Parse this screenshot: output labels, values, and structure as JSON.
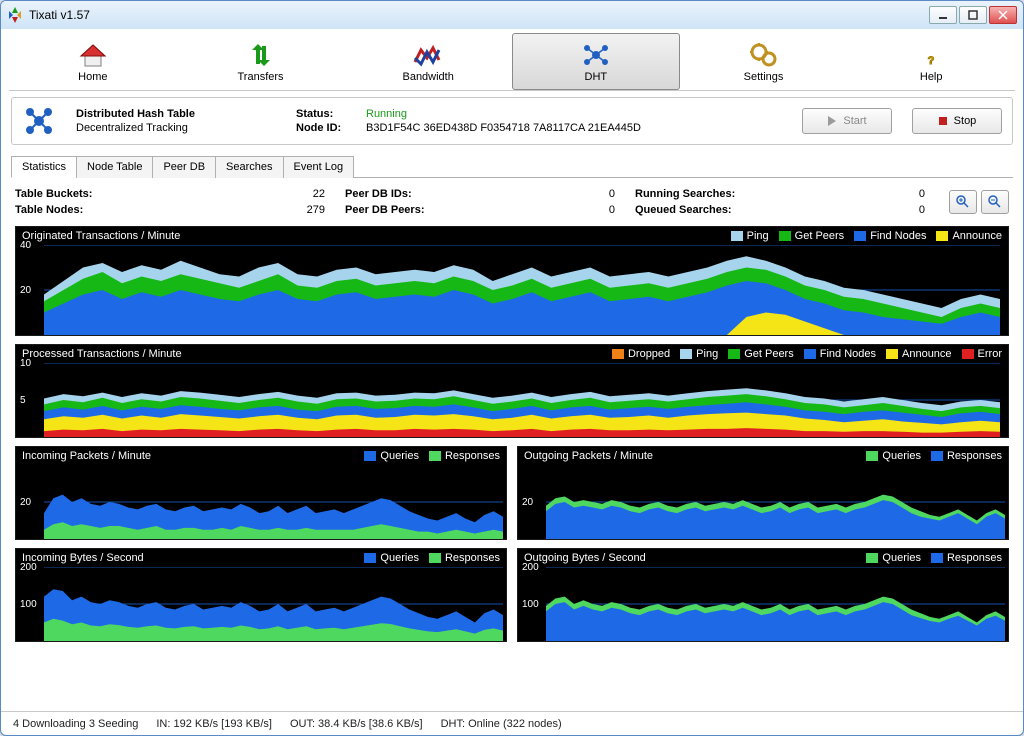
{
  "window": {
    "title": "Tixati v1.57"
  },
  "toolbar": [
    {
      "id": "home",
      "label": "Home"
    },
    {
      "id": "transfers",
      "label": "Transfers"
    },
    {
      "id": "bandwidth",
      "label": "Bandwidth"
    },
    {
      "id": "dht",
      "label": "DHT",
      "active": true
    },
    {
      "id": "settings",
      "label": "Settings"
    },
    {
      "id": "help",
      "label": "Help"
    }
  ],
  "info": {
    "title": "Distributed Hash Table",
    "subtitle": "Decentralized Tracking",
    "status_label": "Status:",
    "status_value": "Running",
    "nodeid_label": "Node ID:",
    "nodeid_value": "B3D1F54C 36ED438D F0354718 7A8117CA 21EA445D",
    "start": "Start",
    "stop": "Stop"
  },
  "tabs": [
    "Statistics",
    "Node Table",
    "Peer DB",
    "Searches",
    "Event Log"
  ],
  "active_tab": 0,
  "stats": {
    "table_buckets_l": "Table Buckets:",
    "table_buckets_v": "22",
    "table_nodes_l": "Table Nodes:",
    "table_nodes_v": "279",
    "peer_db_ids_l": "Peer DB IDs:",
    "peer_db_ids_v": "0",
    "peer_db_peers_l": "Peer DB Peers:",
    "peer_db_peers_v": "0",
    "running_l": "Running Searches:",
    "running_v": "0",
    "queued_l": "Queued Searches:",
    "queued_v": "0"
  },
  "colors": {
    "ping": "#a6d4ec",
    "getpeers": "#16b816",
    "findnodes": "#1e6ae6",
    "announce": "#f6e516",
    "dropped": "#f08018",
    "error": "#e02020",
    "queries": "#1e6ae6",
    "responses": "#4fd860",
    "grid": "#303030",
    "axis": "#1e6ae6"
  },
  "charts": {
    "c1": {
      "title": "Originated Transactions / Minute",
      "ylim": 40,
      "yticks": [
        40,
        20
      ],
      "h": 90,
      "legend": [
        {
          "label": "Ping",
          "color": "ping"
        },
        {
          "label": "Get Peers",
          "color": "getpeers"
        },
        {
          "label": "Find Nodes",
          "color": "findnodes"
        },
        {
          "label": "Announce",
          "color": "announce"
        }
      ],
      "series": [
        {
          "color": "ping",
          "data": [
            18,
            24,
            30,
            32,
            28,
            31,
            29,
            33,
            30,
            27,
            26,
            30,
            32,
            27,
            26,
            29,
            30,
            27,
            28,
            29,
            28,
            31,
            29,
            24,
            27,
            30,
            26,
            28,
            30,
            26,
            27,
            28,
            26,
            28,
            30,
            33,
            35,
            33,
            30,
            26,
            24,
            21,
            20,
            18,
            16,
            14,
            12,
            16,
            18,
            16
          ]
        },
        {
          "color": "getpeers",
          "data": [
            15,
            20,
            25,
            28,
            23,
            26,
            24,
            27,
            25,
            23,
            21,
            24,
            27,
            22,
            21,
            24,
            25,
            22,
            23,
            24,
            23,
            26,
            24,
            20,
            22,
            25,
            21,
            23,
            25,
            21,
            22,
            23,
            21,
            23,
            25,
            28,
            30,
            29,
            26,
            22,
            20,
            17,
            16,
            14,
            12,
            10,
            8,
            12,
            14,
            12
          ]
        },
        {
          "color": "findnodes",
          "data": [
            10,
            14,
            18,
            20,
            16,
            19,
            17,
            20,
            18,
            16,
            15,
            18,
            20,
            16,
            15,
            18,
            19,
            16,
            17,
            18,
            17,
            20,
            18,
            14,
            16,
            19,
            15,
            17,
            19,
            15,
            16,
            17,
            15,
            17,
            19,
            22,
            24,
            23,
            20,
            16,
            14,
            11,
            10,
            8,
            7,
            6,
            5,
            8,
            10,
            8
          ]
        },
        {
          "color": "announce",
          "data": [
            0,
            0,
            0,
            0,
            0,
            0,
            0,
            0,
            0,
            0,
            0,
            0,
            0,
            0,
            0,
            0,
            0,
            0,
            0,
            0,
            0,
            0,
            0,
            0,
            0,
            0,
            0,
            0,
            0,
            0,
            0,
            0,
            0,
            0,
            0,
            0,
            8,
            10,
            9,
            6,
            3,
            0,
            0,
            0,
            0,
            0,
            0,
            0,
            0,
            0
          ]
        }
      ]
    },
    "c2": {
      "title": "Processed Transactions / Minute",
      "ylim": 10,
      "yticks": [
        10,
        5
      ],
      "h": 74,
      "legend": [
        {
          "label": "Dropped",
          "color": "dropped"
        },
        {
          "label": "Ping",
          "color": "ping"
        },
        {
          "label": "Get Peers",
          "color": "getpeers"
        },
        {
          "label": "Find Nodes",
          "color": "findnodes"
        },
        {
          "label": "Announce",
          "color": "announce"
        },
        {
          "label": "Error",
          "color": "error"
        }
      ],
      "series": [
        {
          "color": "ping",
          "data": [
            5.2,
            5.8,
            5.5,
            6.0,
            5.4,
            5.9,
            5.6,
            6.2,
            6.0,
            5.7,
            5.4,
            5.8,
            6.1,
            5.6,
            5.3,
            5.9,
            6.0,
            5.6,
            5.7,
            6.0,
            5.9,
            6.3,
            5.8,
            5.3,
            5.6,
            6.0,
            5.4,
            5.8,
            6.1,
            5.5,
            5.7,
            5.9,
            5.6,
            5.9,
            6.2,
            6.4,
            6.6,
            6.3,
            5.9,
            5.4,
            5.2,
            4.8,
            5.1,
            5.4,
            5.0,
            4.6,
            4.3,
            4.8,
            5.0,
            4.7
          ]
        },
        {
          "color": "getpeers",
          "data": [
            4.4,
            5.0,
            4.7,
            5.3,
            4.6,
            5.1,
            4.8,
            5.4,
            5.2,
            4.9,
            4.6,
            5.0,
            5.3,
            4.8,
            4.5,
            5.1,
            5.2,
            4.8,
            4.9,
            5.2,
            5.1,
            5.5,
            5.0,
            4.5,
            4.8,
            5.2,
            4.6,
            5.0,
            5.3,
            4.7,
            4.9,
            5.1,
            4.8,
            5.1,
            5.4,
            5.6,
            5.8,
            5.5,
            5.1,
            4.6,
            4.4,
            4.0,
            4.3,
            4.6,
            4.2,
            3.8,
            3.5,
            4.0,
            4.2,
            3.9
          ]
        },
        {
          "color": "findnodes",
          "data": [
            3.5,
            4.0,
            3.7,
            4.2,
            3.6,
            4.1,
            3.8,
            4.3,
            4.1,
            3.8,
            3.6,
            4.0,
            4.2,
            3.7,
            3.5,
            4.1,
            4.2,
            3.8,
            3.9,
            4.2,
            4.1,
            4.4,
            4.0,
            3.5,
            3.8,
            4.2,
            3.6,
            4.0,
            4.2,
            3.7,
            3.9,
            4.1,
            3.8,
            4.1,
            4.3,
            4.5,
            4.7,
            4.4,
            4.1,
            3.6,
            3.4,
            3.1,
            3.4,
            3.6,
            3.3,
            3.0,
            2.7,
            3.2,
            3.4,
            3.1
          ]
        },
        {
          "color": "announce",
          "data": [
            2.4,
            2.8,
            2.6,
            3.0,
            2.5,
            2.9,
            2.6,
            3.1,
            2.9,
            2.7,
            2.5,
            2.8,
            3.0,
            2.6,
            2.4,
            2.9,
            3.0,
            2.6,
            2.7,
            3.0,
            2.9,
            3.1,
            2.8,
            2.4,
            2.6,
            3.0,
            2.5,
            2.8,
            3.0,
            2.6,
            2.7,
            2.9,
            2.6,
            2.9,
            3.1,
            3.2,
            3.3,
            3.1,
            2.9,
            2.5,
            2.3,
            2.0,
            2.2,
            2.4,
            2.1,
            1.9,
            1.7,
            2.0,
            2.2,
            2.0
          ]
        },
        {
          "color": "error",
          "data": [
            0.8,
            1.0,
            0.9,
            1.1,
            0.8,
            1.0,
            0.9,
            1.1,
            1.0,
            0.9,
            0.8,
            1.0,
            1.1,
            0.9,
            0.8,
            1.0,
            1.1,
            0.9,
            0.9,
            1.1,
            1.0,
            1.1,
            1.0,
            0.8,
            0.9,
            1.1,
            0.8,
            1.0,
            1.1,
            0.9,
            0.9,
            1.0,
            0.9,
            1.0,
            1.1,
            1.1,
            1.2,
            1.1,
            1.0,
            0.8,
            0.8,
            0.7,
            0.8,
            0.8,
            0.7,
            0.6,
            0.6,
            0.7,
            0.8,
            0.7
          ]
        }
      ]
    },
    "c3": {
      "title": "Incoming Packets / Minute",
      "ylim": 40,
      "yticks": [
        20
      ],
      "h": 74,
      "legend": [
        {
          "label": "Queries",
          "color": "queries"
        },
        {
          "label": "Responses",
          "color": "responses"
        }
      ],
      "series": [
        {
          "color": "queries",
          "data": [
            14,
            22,
            24,
            20,
            22,
            19,
            18,
            20,
            19,
            17,
            16,
            18,
            19,
            16,
            15,
            17,
            18,
            15,
            16,
            17,
            16,
            19,
            17,
            14,
            15,
            18,
            14,
            16,
            18,
            14,
            15,
            16,
            14,
            16,
            18,
            20,
            22,
            21,
            18,
            15,
            13,
            11,
            10,
            12,
            14,
            11,
            9,
            13,
            15,
            12
          ]
        },
        {
          "color": "responses",
          "data": [
            5,
            8,
            9,
            7,
            8,
            7,
            6,
            7,
            7,
            6,
            5,
            6,
            7,
            5,
            5,
            6,
            6,
            5,
            5,
            6,
            5,
            7,
            6,
            5,
            5,
            6,
            5,
            5,
            6,
            5,
            5,
            5,
            5,
            5,
            6,
            7,
            8,
            7,
            6,
            5,
            4,
            4,
            3,
            4,
            5,
            4,
            3,
            4,
            5,
            4
          ]
        }
      ]
    },
    "c4": {
      "title": "Outgoing Packets / Minute",
      "ylim": 40,
      "yticks": [
        20
      ],
      "h": 74,
      "legend": [
        {
          "label": "Queries",
          "color": "responses"
        },
        {
          "label": "Responses",
          "color": "queries"
        }
      ],
      "series": [
        {
          "color": "responses",
          "data": [
            18,
            22,
            23,
            20,
            21,
            20,
            19,
            21,
            20,
            18,
            17,
            19,
            20,
            18,
            17,
            19,
            20,
            18,
            19,
            20,
            19,
            21,
            19,
            17,
            18,
            20,
            17,
            19,
            20,
            17,
            18,
            19,
            17,
            19,
            20,
            22,
            24,
            23,
            20,
            17,
            15,
            13,
            12,
            14,
            16,
            13,
            10,
            14,
            16,
            13
          ]
        },
        {
          "color": "queries",
          "data": [
            15,
            19,
            20,
            17,
            18,
            17,
            16,
            18,
            17,
            15,
            14,
            16,
            17,
            15,
            14,
            16,
            17,
            15,
            16,
            17,
            16,
            18,
            16,
            14,
            15,
            17,
            14,
            16,
            17,
            14,
            15,
            16,
            14,
            16,
            17,
            19,
            21,
            20,
            17,
            14,
            12,
            11,
            10,
            12,
            14,
            11,
            8,
            12,
            14,
            11
          ]
        }
      ]
    },
    "c5": {
      "title": "Incoming Bytes / Second",
      "ylim": 200,
      "yticks": [
        200,
        100
      ],
      "h": 74,
      "legend": [
        {
          "label": "Queries",
          "color": "queries"
        },
        {
          "label": "Responses",
          "color": "responses"
        }
      ],
      "series": [
        {
          "color": "queries",
          "data": [
            120,
            140,
            135,
            110,
            120,
            105,
            100,
            110,
            105,
            95,
            90,
            100,
            105,
            90,
            85,
            95,
            100,
            85,
            90,
            95,
            90,
            105,
            95,
            80,
            85,
            100,
            80,
            90,
            100,
            80,
            85,
            90,
            80,
            90,
            100,
            110,
            120,
            115,
            100,
            85,
            75,
            65,
            60,
            70,
            80,
            65,
            50,
            75,
            85,
            70
          ]
        },
        {
          "color": "responses",
          "data": [
            50,
            60,
            55,
            45,
            50,
            42,
            40,
            45,
            43,
            38,
            36,
            40,
            42,
            36,
            34,
            38,
            40,
            34,
            36,
            38,
            36,
            42,
            38,
            32,
            34,
            40,
            32,
            36,
            40,
            32,
            34,
            36,
            32,
            36,
            40,
            44,
            48,
            46,
            40,
            34,
            30,
            26,
            24,
            28,
            32,
            26,
            20,
            30,
            34,
            28
          ]
        }
      ]
    },
    "c6": {
      "title": "Outgoing Bytes / Second",
      "ylim": 200,
      "yticks": [
        200,
        100
      ],
      "h": 74,
      "legend": [
        {
          "label": "Queries",
          "color": "responses"
        },
        {
          "label": "Responses",
          "color": "queries"
        }
      ],
      "series": [
        {
          "color": "responses",
          "data": [
            95,
            115,
            120,
            100,
            110,
            100,
            95,
            105,
            100,
            90,
            85,
            95,
            100,
            90,
            85,
            95,
            100,
            90,
            95,
            100,
            95,
            105,
            95,
            85,
            90,
            100,
            85,
            95,
            100,
            85,
            90,
            95,
            85,
            95,
            100,
            110,
            120,
            115,
            100,
            85,
            75,
            65,
            60,
            70,
            80,
            65,
            50,
            70,
            80,
            65
          ]
        },
        {
          "color": "queries",
          "data": [
            80,
            100,
            105,
            85,
            95,
            85,
            80,
            90,
            85,
            75,
            70,
            80,
            85,
            75,
            70,
            80,
            85,
            75,
            80,
            85,
            80,
            90,
            80,
            70,
            75,
            85,
            70,
            80,
            85,
            70,
            75,
            80,
            70,
            80,
            85,
            95,
            105,
            100,
            85,
            70,
            62,
            54,
            50,
            60,
            68,
            55,
            42,
            60,
            68,
            55
          ]
        }
      ]
    }
  },
  "statusbar": {
    "dl": "4 Downloading  3 Seeding",
    "in": "IN: 192 KB/s [193 KB/s]",
    "out": "OUT: 38.4 KB/s [38.6 KB/s]",
    "dht": "DHT: Online (322 nodes)"
  }
}
